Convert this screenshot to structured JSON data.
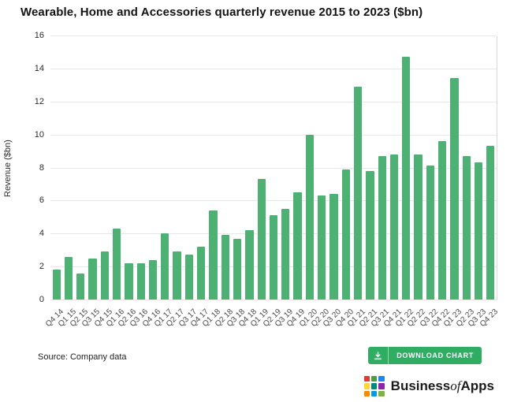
{
  "chart": {
    "title": "Wearable, Home and Accessories quarterly revenue 2015 to 2023 ($bn)"
  },
  "chart_data": {
    "type": "bar",
    "title": "Wearable, Home and Accessories quarterly revenue 2015 to 2023 ($bn)",
    "xlabel": "",
    "ylabel": "Revenue ($bn)",
    "ylim": [
      0,
      16
    ],
    "yticks": [
      0,
      2,
      4,
      6,
      8,
      10,
      12,
      14,
      16
    ],
    "grid": true,
    "legend": "none",
    "bar_color": "#4cb173",
    "categories": [
      "Q4 14",
      "Q1 15",
      "Q2 15",
      "Q3 15",
      "Q4 15",
      "Q1 16",
      "Q2 16",
      "Q3 16",
      "Q4 16",
      "Q1 17",
      "Q2 17",
      "Q3 17",
      "Q4 17",
      "Q1 18",
      "Q2 18",
      "Q3 18",
      "Q4 18",
      "Q1 19",
      "Q2 19",
      "Q3 19",
      "Q4 19",
      "Q1 20",
      "Q2 20",
      "Q3 20",
      "Q4 20",
      "Q1 21",
      "Q2 21",
      "Q3 21",
      "Q4 21",
      "Q1 22",
      "Q2 22",
      "Q3 22",
      "Q4 22",
      "Q1 23",
      "Q2 23",
      "Q3 23",
      "Q4 23"
    ],
    "values": [
      1.8,
      2.6,
      1.6,
      2.5,
      2.9,
      4.3,
      2.2,
      2.2,
      2.4,
      4.0,
      2.9,
      2.7,
      3.2,
      5.4,
      3.9,
      3.7,
      4.2,
      7.3,
      5.1,
      5.5,
      6.5,
      10.0,
      6.3,
      6.4,
      7.9,
      12.9,
      7.8,
      8.7,
      8.8,
      14.7,
      8.8,
      8.1,
      9.6,
      13.4,
      8.7,
      8.3,
      9.3
    ]
  },
  "footer": {
    "source": "Source: Company data",
    "download_button": {
      "label": "DOWNLOAD CHART",
      "color": "#2fae63",
      "icon": "download-icon"
    }
  },
  "logo": {
    "text_business": "Business",
    "text_of": "of",
    "text_apps": "Apps",
    "square_colors": [
      "#e53935",
      "#43a047",
      "#1e88e5",
      "#fdd835",
      "#00897b",
      "#8e24aa",
      "#fb8c00",
      "#039be5",
      "#7cb342"
    ]
  },
  "colors": {
    "background": "#ffffff",
    "gridline": "#e8e8e8",
    "axis_text": "#2c2c2c",
    "tick_text": "#474747"
  }
}
